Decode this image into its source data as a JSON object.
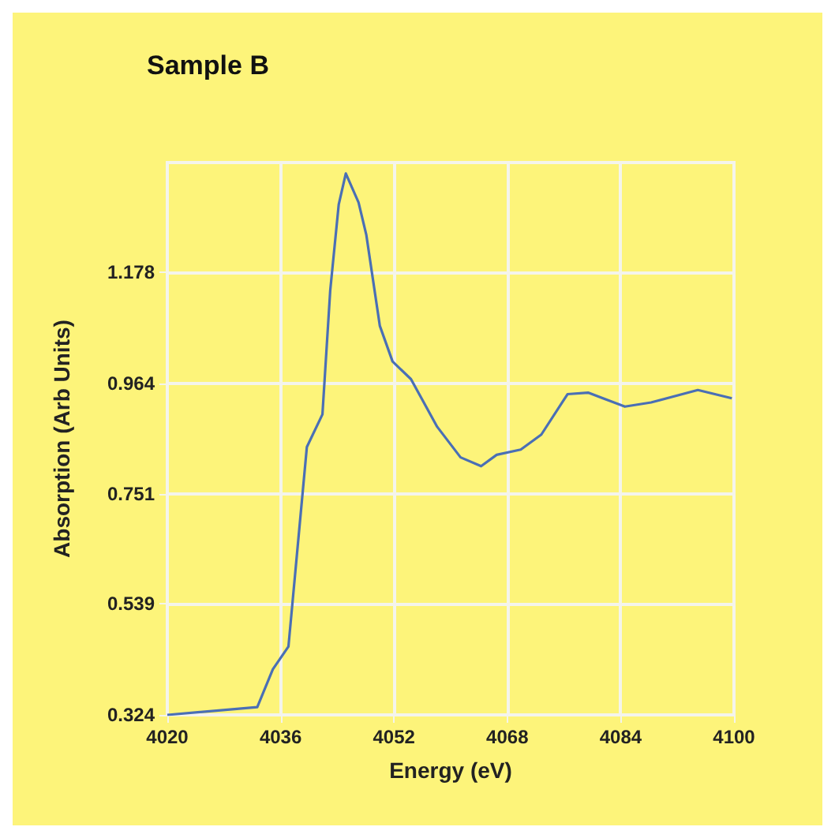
{
  "chart_data": {
    "type": "line",
    "title": "Sample B",
    "xlabel": "Energy (eV)",
    "ylabel": "Absorption (Arb Units)",
    "x": [
      4020,
      4032.7,
      4034.9,
      4037.1,
      4039.7,
      4041.9,
      4043.0,
      4044.2,
      4045.2,
      4047.0,
      4048.1,
      4050.0,
      4051.8,
      4054.4,
      4058.1,
      4061.4,
      4064.3,
      4066.5,
      4069.9,
      4072.8,
      4076.5,
      4079.4,
      4084.6,
      4088.3,
      4094.9,
      4099.7
    ],
    "series": [
      {
        "color": "#4a6fb5",
        "values": [
          0.324,
          0.339,
          0.412,
          0.456,
          0.841,
          0.904,
          1.143,
          1.309,
          1.369,
          1.313,
          1.25,
          1.075,
          1.006,
          0.972,
          0.88,
          0.821,
          0.804,
          0.826,
          0.836,
          0.865,
          0.943,
          0.946,
          0.919,
          0.927,
          0.951,
          0.935
        ]
      }
    ],
    "xlim": [
      4020,
      4100
    ],
    "xticks": [
      4020,
      4036,
      4052,
      4068,
      4084,
      4100
    ],
    "ylim": [
      0.324,
      1.39
    ],
    "yticks": [
      0.324,
      0.539,
      0.751,
      0.964,
      1.178
    ],
    "grid": true,
    "marker": "none",
    "line_style": "solid"
  }
}
